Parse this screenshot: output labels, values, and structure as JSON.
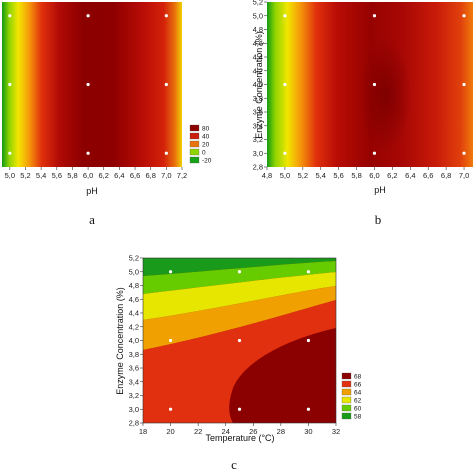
{
  "chart_data": [
    {
      "id": "a",
      "type": "heatmap",
      "caption": "a",
      "xlabel": "pH",
      "ylabel": "",
      "xticks": [
        "5,0",
        "5,2",
        "5,4",
        "5,6",
        "5,8",
        "6,0",
        "6,2",
        "6,4",
        "6,6",
        "6,8",
        "7,0",
        "7,2"
      ],
      "xlim": [
        4.9,
        7.2
      ],
      "ylim": [
        2.8,
        5.2
      ],
      "points": [
        {
          "x": 5.0,
          "y": 5.0
        },
        {
          "x": 6.0,
          "y": 5.0
        },
        {
          "x": 7.0,
          "y": 5.0
        },
        {
          "x": 5.0,
          "y": 4.0
        },
        {
          "x": 6.0,
          "y": 4.0
        },
        {
          "x": 7.0,
          "y": 4.0
        },
        {
          "x": 5.0,
          "y": 3.0
        },
        {
          "x": 6.0,
          "y": 3.0
        },
        {
          "x": 7.0,
          "y": 3.0
        }
      ],
      "legend": {
        "placement": "bottom-right",
        "entries": [
          {
            "label": "80",
            "color": "#8b0000"
          },
          {
            "label": "40",
            "color": "#c81e0a"
          },
          {
            "label": "20",
            "color": "#e8720c"
          },
          {
            "label": "0",
            "color": "#8fd400"
          },
          {
            "label": "-20",
            "color": "#16a216"
          }
        ]
      }
    },
    {
      "id": "b",
      "type": "heatmap",
      "caption": "b",
      "xlabel": "pH",
      "ylabel": "Enzyme Concentration (%)",
      "xticks": [
        "4,8",
        "5,0",
        "5,2",
        "5,4",
        "5,6",
        "5,8",
        "6,0",
        "6,2",
        "6,4",
        "6,6",
        "6,8",
        "7,0"
      ],
      "yticks": [
        "2,8",
        "3,0",
        "3,2",
        "3,4",
        "3,6",
        "3,8",
        "4,0",
        "4,2",
        "4,4",
        "4,6",
        "4,8",
        "5,0",
        "5,2"
      ],
      "xlim": [
        4.8,
        7.1
      ],
      "ylim": [
        2.8,
        5.2
      ],
      "points": [
        {
          "x": 5.0,
          "y": 5.0
        },
        {
          "x": 6.0,
          "y": 5.0
        },
        {
          "x": 7.0,
          "y": 5.0
        },
        {
          "x": 5.0,
          "y": 4.0
        },
        {
          "x": 6.0,
          "y": 4.0
        },
        {
          "x": 7.0,
          "y": 4.0
        },
        {
          "x": 5.0,
          "y": 3.0
        },
        {
          "x": 6.0,
          "y": 3.0
        },
        {
          "x": 7.0,
          "y": 3.0
        }
      ]
    },
    {
      "id": "c",
      "type": "heatmap",
      "caption": "c",
      "xlabel": "Temperature (°C)",
      "ylabel": "Enzyme Concentration (%)",
      "xticks": [
        "18",
        "20",
        "22",
        "24",
        "26",
        "28",
        "30",
        "32"
      ],
      "yticks": [
        "2,8",
        "3,0",
        "3,2",
        "3,4",
        "3,6",
        "3,8",
        "4,0",
        "4,2",
        "4,4",
        "4,6",
        "4,8",
        "5,0",
        "5,2"
      ],
      "xlim": [
        18,
        32
      ],
      "ylim": [
        2.8,
        5.2
      ],
      "points": [
        {
          "x": 20,
          "y": 5.0
        },
        {
          "x": 25,
          "y": 5.0
        },
        {
          "x": 30,
          "y": 5.0
        },
        {
          "x": 20,
          "y": 4.0
        },
        {
          "x": 25,
          "y": 4.0
        },
        {
          "x": 30,
          "y": 4.0
        },
        {
          "x": 20,
          "y": 3.0
        },
        {
          "x": 25,
          "y": 3.0
        },
        {
          "x": 30,
          "y": 3.0
        }
      ],
      "legend": {
        "placement": "bottom-right",
        "entries": [
          {
            "label": "68",
            "color": "#8b0000"
          },
          {
            "label": "66",
            "color": "#e03010"
          },
          {
            "label": "64",
            "color": "#f0a000"
          },
          {
            "label": "62",
            "color": "#e6e600"
          },
          {
            "label": "60",
            "color": "#66cc00"
          },
          {
            "label": "58",
            "color": "#1a9a1a"
          }
        ]
      }
    }
  ]
}
